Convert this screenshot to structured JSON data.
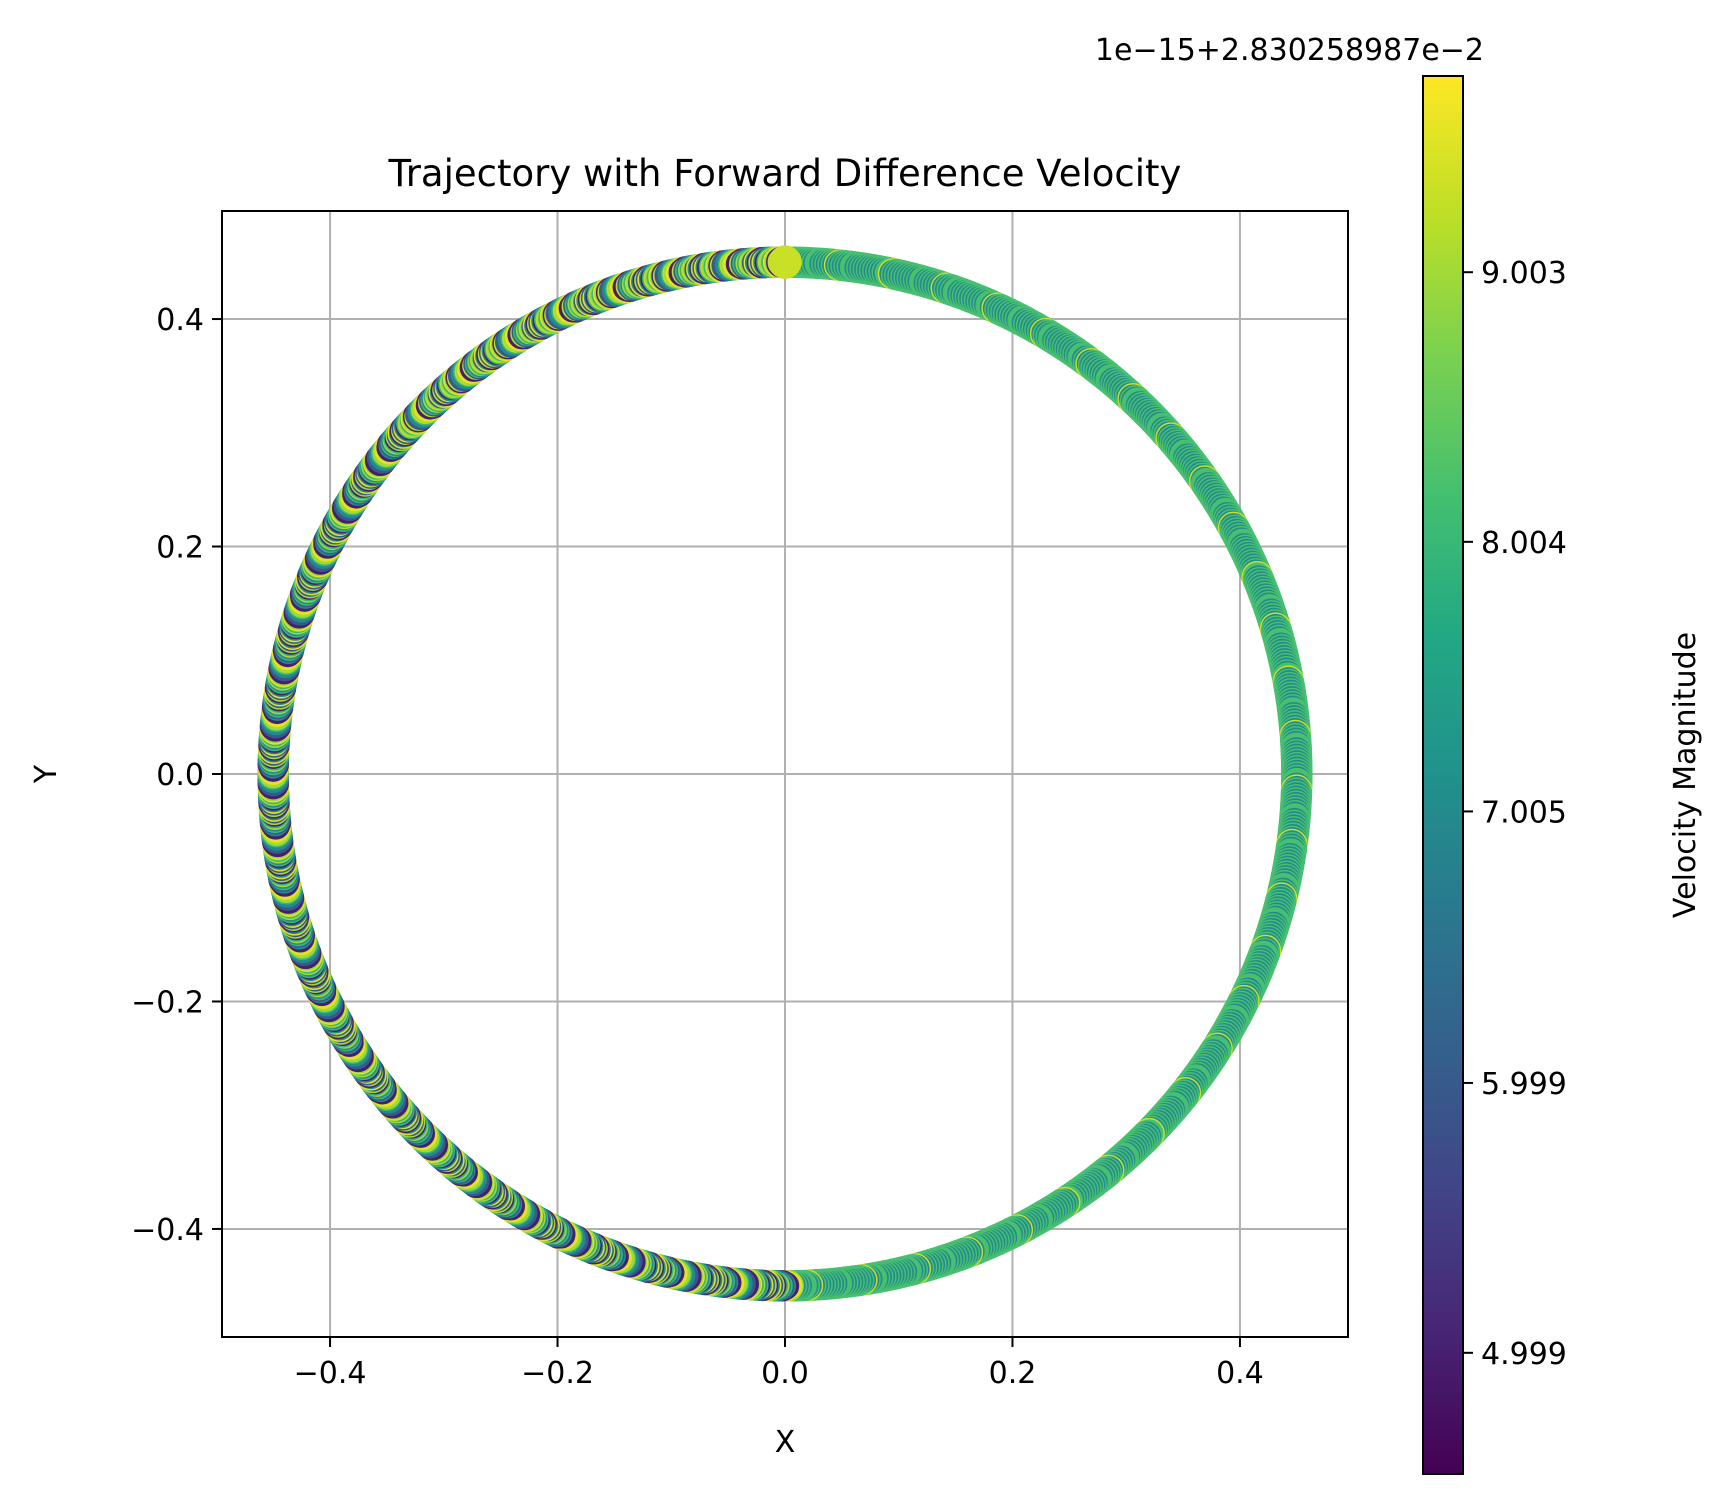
{
  "chart_data": {
    "type": "scatter",
    "title": "Trajectory with Forward Difference Velocity",
    "xlabel": "X",
    "ylabel": "Y",
    "xlim": [
      -0.495,
      0.495
    ],
    "ylim": [
      -0.495,
      0.495
    ],
    "grid": true,
    "xticks": [
      -0.4,
      -0.2,
      0.0,
      0.2,
      0.4
    ],
    "xtick_labels": [
      "−0.4",
      "−0.2",
      "0.0",
      "0.2",
      "0.4"
    ],
    "yticks": [
      -0.4,
      -0.2,
      0.0,
      0.2,
      0.4
    ],
    "ytick_labels": [
      "−0.4",
      "−0.2",
      "0.0",
      "0.2",
      "0.4"
    ],
    "series": [
      {
        "shape": "circle",
        "radius": 0.45,
        "center": [
          0.0,
          0.0
        ],
        "start_point": [
          0.0,
          0.45
        ],
        "direction": "clockwise",
        "x": [
          0.0,
          0.117,
          0.225,
          0.318,
          0.39,
          0.435,
          0.45,
          0.435,
          0.39,
          0.318,
          0.225,
          0.117,
          0.0,
          -0.117,
          -0.225,
          -0.318,
          -0.39,
          -0.435,
          -0.45,
          -0.435,
          -0.39,
          -0.318,
          -0.225,
          -0.117
        ],
        "y": [
          0.45,
          0.435,
          0.39,
          0.318,
          0.225,
          0.117,
          0.0,
          -0.117,
          -0.225,
          -0.318,
          -0.39,
          -0.435,
          -0.45,
          -0.435,
          -0.39,
          -0.318,
          -0.225,
          -0.117,
          0.0,
          0.117,
          0.225,
          0.318,
          0.39,
          0.435
        ],
        "pattern": "right half and bottom mostly teal (~7.0), left half mixed purple to yellow, start point yellow-green (~9.3)"
      }
    ],
    "colorbar": {
      "label": "Velocity Magnitude",
      "colormap": "viridis",
      "offset_text": "1e−15+2.830258987e−2",
      "ticks": [
        4.999,
        5.999,
        7.005,
        8.004,
        9.003
      ],
      "tick_labels": [
        "4.999",
        "5.999",
        "7.005",
        "8.004",
        "9.003"
      ],
      "range": [
        4.55,
        9.73
      ]
    }
  }
}
